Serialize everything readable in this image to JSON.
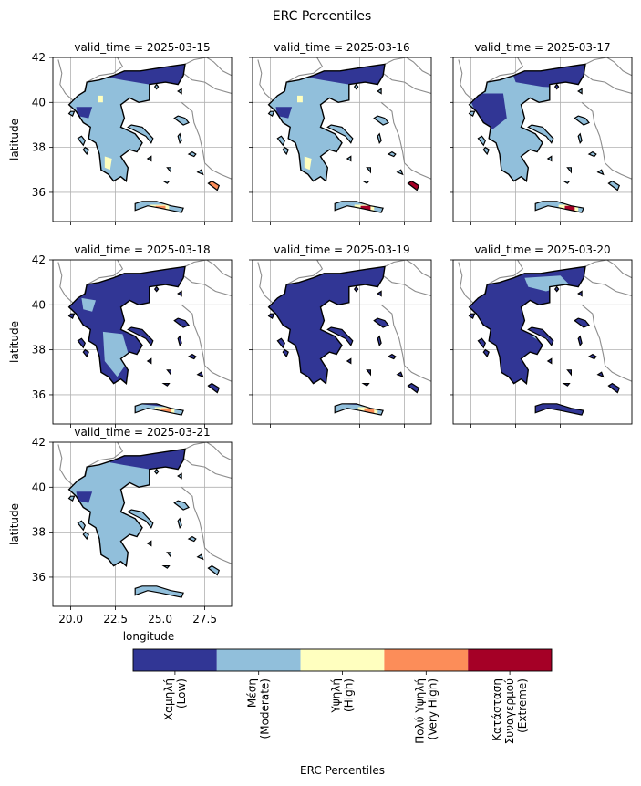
{
  "figure": {
    "title": "ERC Percentiles"
  },
  "chart_data": {
    "type": "heatmap",
    "title": "ERC Percentiles",
    "xlabel": "longitude",
    "ylabel": "latitude",
    "xlim": [
      19.0,
      29.0
    ],
    "ylim": [
      34.7,
      42.0
    ],
    "x_ticks": [
      "20.0",
      "22.5",
      "25.0",
      "27.5"
    ],
    "x_tick_values": [
      20.0,
      22.5,
      25.0,
      27.5
    ],
    "y_ticks": [
      "36",
      "38",
      "40",
      "42"
    ],
    "y_tick_values": [
      36,
      38,
      40,
      42
    ],
    "grid": true,
    "panels": [
      {
        "title": "valid_time = 2025-03-15",
        "dominant": "moderate",
        "low": "north",
        "hot": [
          [
            25.0,
            35.2,
            3
          ],
          [
            28.0,
            36.3,
            3
          ]
        ]
      },
      {
        "title": "valid_time = 2025-03-16",
        "dominant": "moderate",
        "low": "north",
        "hot": [
          [
            25.3,
            35.2,
            4
          ],
          [
            28.0,
            36.3,
            4
          ]
        ]
      },
      {
        "title": "valid_time = 2025-03-17",
        "dominant": "moderate",
        "low": "north-west",
        "hot": [
          [
            25.5,
            35.2,
            4
          ]
        ]
      },
      {
        "title": "valid_time = 2025-03-18",
        "dominant": "low",
        "low": "wide",
        "hot": [
          [
            25.3,
            35.2,
            3
          ]
        ]
      },
      {
        "title": "valid_time = 2025-03-19",
        "dominant": "low",
        "low": "all",
        "hot": [
          [
            25.5,
            35.2,
            3
          ]
        ]
      },
      {
        "title": "valid_time = 2025-03-20",
        "dominant": "low",
        "low": "most",
        "hot": []
      },
      {
        "title": "valid_time = 2025-03-21",
        "dominant": "moderate",
        "low": "north",
        "hot": []
      }
    ],
    "colorbar": {
      "label": "ERC Percentiles",
      "classes": [
        {
          "lines": [
            "Χαμηλή",
            "(Low)"
          ],
          "color": "#313695"
        },
        {
          "lines": [
            "Μέση",
            "(Moderate)"
          ],
          "color": "#91bfdb"
        },
        {
          "lines": [
            "Υψηλή",
            "(High)"
          ],
          "color": "#ffffbf"
        },
        {
          "lines": [
            "Πολύ Υψηλή",
            "(Very High)"
          ],
          "color": "#fc8d59"
        },
        {
          "lines": [
            "Κατάσταση",
            "Συναγερμού",
            "(Extreme)"
          ],
          "color": "#a50026"
        }
      ]
    }
  }
}
